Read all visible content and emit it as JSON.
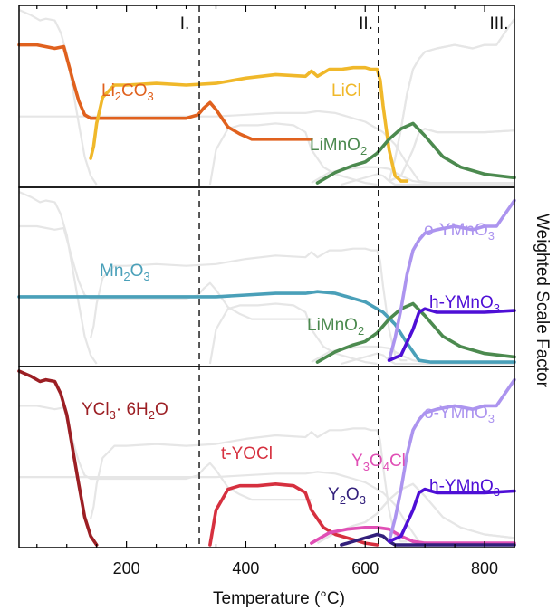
{
  "chart_data": {
    "type": "line",
    "xlabel": "Temperature (°C)",
    "ylabel": "Weighted Scale Factor",
    "xlim": [
      20,
      850
    ],
    "xticks": [
      200,
      400,
      600,
      800
    ],
    "regions": [
      {
        "label": "I.",
        "boundary": 322
      },
      {
        "label": "II.",
        "boundary": 622
      },
      {
        "label": "III.",
        "boundary": null
      }
    ],
    "colors": {
      "Li2CO3": "#e0611e",
      "LiCl": "#f0b82a",
      "LiMnO2": "#4c8a4f",
      "Mn2O3": "#4aa0b9",
      "o-YMnO3": "#ac94ef",
      "h-YMnO3": "#4e0fd6",
      "YCl3_6H2O": "#9c1f24",
      "t-YOCl": "#d6303f",
      "Y3O4Cl": "#e04fb5",
      "Y2O3": "#33207c",
      "background": "#e6e6e6"
    },
    "panels": [
      {
        "series": [
          {
            "key": "Li2CO3",
            "label_main": "Li",
            "label_sub": "2",
            "label_tail": "CO",
            "label_sub2": "3",
            "x": [
              20,
              50,
              80,
              95,
              110,
              120,
              130,
              140,
              150,
              170,
              200,
              250,
              300,
              320,
              330,
              340,
              350,
              360,
              370,
              390,
              410,
              450,
              500,
              510
            ],
            "y": [
              0.8,
              0.8,
              0.78,
              0.79,
              0.6,
              0.48,
              0.4,
              0.38,
              0.38,
              0.38,
              0.38,
              0.38,
              0.38,
              0.4,
              0.44,
              0.47,
              0.43,
              0.38,
              0.33,
              0.29,
              0.26,
              0.26,
              0.26,
              0.26
            ]
          },
          {
            "key": "LiCl",
            "label_main": "LiCl",
            "x": [
              140,
              145,
              150,
              160,
              180,
              200,
              250,
              300,
              350,
              400,
              450,
              500,
              510,
              520,
              540,
              560,
              580,
              600,
              610,
              620,
              625,
              630,
              640,
              650,
              660,
              670
            ],
            "y": [
              0.15,
              0.22,
              0.35,
              0.5,
              0.57,
              0.57,
              0.58,
              0.57,
              0.58,
              0.61,
              0.63,
              0.62,
              0.65,
              0.62,
              0.66,
              0.66,
              0.67,
              0.67,
              0.66,
              0.66,
              0.6,
              0.45,
              0.2,
              0.05,
              0.02,
              0.02
            ]
          },
          {
            "key": "LiMnO2",
            "label_main": "LiMnO",
            "label_sub": "2",
            "x": [
              520,
              550,
              580,
              600,
              620,
              640,
              660,
              680,
              700,
              730,
              760,
              800,
              850
            ],
            "y": [
              0.01,
              0.07,
              0.11,
              0.13,
              0.18,
              0.26,
              0.32,
              0.35,
              0.28,
              0.16,
              0.1,
              0.06,
              0.04
            ]
          }
        ]
      },
      {
        "series": [
          {
            "key": "Mn2O3",
            "label_main": "Mn",
            "label_sub": "2",
            "label_tail": "O",
            "label_sub2": "3",
            "x": [
              20,
              100,
              200,
              300,
              350,
              400,
              450,
              500,
              520,
              550,
              580,
              600,
              630,
              650,
              670,
              690,
              710,
              850
            ],
            "y": [
              0.39,
              0.39,
              0.39,
              0.39,
              0.39,
              0.4,
              0.41,
              0.41,
              0.42,
              0.41,
              0.38,
              0.36,
              0.3,
              0.23,
              0.12,
              0.02,
              0.01,
              0.01
            ]
          },
          {
            "key": "LiMnO2",
            "label_main": "LiMnO",
            "label_sub": "2",
            "x": [
              520,
              550,
              580,
              600,
              620,
              640,
              660,
              680,
              700,
              730,
              760,
              800,
              850
            ],
            "y": [
              0.01,
              0.07,
              0.11,
              0.13,
              0.18,
              0.26,
              0.32,
              0.35,
              0.28,
              0.16,
              0.1,
              0.06,
              0.04
            ]
          },
          {
            "key": "o-YMnO3",
            "label_main": "o-YMnO",
            "label_sub": "3",
            "x": [
              640,
              650,
              660,
              670,
              680,
              690,
              700,
              720,
              750,
              780,
              800,
              820,
              840,
              850
            ],
            "y": [
              0.02,
              0.15,
              0.32,
              0.52,
              0.66,
              0.72,
              0.76,
              0.78,
              0.8,
              0.78,
              0.8,
              0.8,
              0.9,
              0.95
            ]
          },
          {
            "key": "h-YMnO3",
            "label_main": "h-YMnO",
            "label_sub": "3",
            "x": [
              640,
              660,
              680,
              690,
              700,
              720,
              750,
              800,
              850
            ],
            "y": [
              0.02,
              0.05,
              0.2,
              0.3,
              0.32,
              0.3,
              0.3,
              0.3,
              0.31
            ]
          }
        ]
      },
      {
        "series": [
          {
            "key": "YCl3_6H2O",
            "label_main": "YCl",
            "label_sub": "3",
            "label_tail": "· 6H",
            "label_sub2": "2",
            "label_tail2": "O",
            "x": [
              20,
              40,
              55,
              65,
              80,
              90,
              100,
              110,
              120,
              130,
              140,
              150
            ],
            "y": [
              1.0,
              0.97,
              0.94,
              0.95,
              0.94,
              0.87,
              0.75,
              0.55,
              0.35,
              0.16,
              0.05,
              0.0
            ]
          },
          {
            "key": "t-YOCl",
            "label_main": "t-YOCl",
            "x": [
              340,
              350,
              360,
              370,
              390,
              420,
              450,
              480,
              500,
              510,
              530,
              550,
              580,
              600,
              620
            ],
            "y": [
              0.0,
              0.2,
              0.26,
              0.32,
              0.34,
              0.34,
              0.35,
              0.34,
              0.3,
              0.2,
              0.1,
              0.06,
              0.03,
              0.01,
              0.0
            ]
          },
          {
            "key": "Y3O4Cl",
            "label_main": "Y",
            "label_sub": "3",
            "label_tail": "O",
            "label_sub2": "4",
            "label_tail2": "Cl",
            "x": [
              510,
              540,
              570,
              600,
              620,
              640,
              660,
              680,
              700,
              750,
              800,
              850
            ],
            "y": [
              0.01,
              0.07,
              0.09,
              0.1,
              0.1,
              0.09,
              0.05,
              0.02,
              0.01,
              0.01,
              0.01,
              0.01
            ]
          },
          {
            "key": "Y2O3",
            "label_main": "Y",
            "label_sub": "2",
            "label_tail": "O",
            "label_sub2": "3",
            "x": [
              560,
              580,
              600,
              620,
              630,
              640,
              650,
              660,
              850
            ],
            "y": [
              0.0,
              0.02,
              0.04,
              0.06,
              0.05,
              0.02,
              0.0,
              0.0,
              0.0
            ]
          },
          {
            "key": "o-YMnO3",
            "label_main": "o-YMnO",
            "label_sub": "3",
            "x": [
              640,
              650,
              660,
              670,
              680,
              690,
              700,
              720,
              750,
              780,
              800,
              820,
              840,
              850
            ],
            "y": [
              0.02,
              0.15,
              0.32,
              0.52,
              0.66,
              0.72,
              0.76,
              0.78,
              0.8,
              0.78,
              0.8,
              0.8,
              0.9,
              0.95
            ]
          },
          {
            "key": "h-YMnO3",
            "label_main": "h-YMnO",
            "label_sub": "3",
            "x": [
              640,
              660,
              680,
              690,
              700,
              720,
              750,
              800,
              850
            ],
            "y": [
              0.02,
              0.05,
              0.2,
              0.3,
              0.32,
              0.3,
              0.3,
              0.3,
              0.31
            ]
          }
        ]
      }
    ]
  }
}
